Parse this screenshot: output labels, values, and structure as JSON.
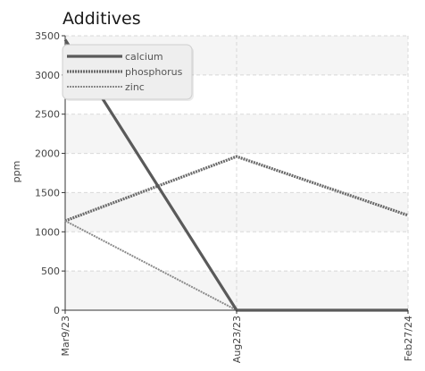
{
  "chart_data": {
    "type": "line",
    "title": "Additives",
    "xlabel": "",
    "ylabel": "ppm",
    "categories": [
      "Mar9/23",
      "Aug23/23",
      "Feb27/24"
    ],
    "ylim": [
      0,
      3500
    ],
    "yticks": [
      0,
      500,
      1000,
      1500,
      2000,
      2500,
      3000,
      3500
    ],
    "grid": true,
    "legend_position": "top-left",
    "series": [
      {
        "name": "calcium",
        "values": [
          3450,
          0,
          0
        ],
        "color": "#5a5a5a",
        "style": "solid"
      },
      {
        "name": "phosphorus",
        "values": [
          1140,
          1960,
          1210
        ],
        "color": "#6b6b6b",
        "style": "dotted"
      },
      {
        "name": "zinc",
        "values": [
          1140,
          0,
          0
        ],
        "color": "#8a8a8a",
        "style": "dotted-thin"
      }
    ]
  }
}
